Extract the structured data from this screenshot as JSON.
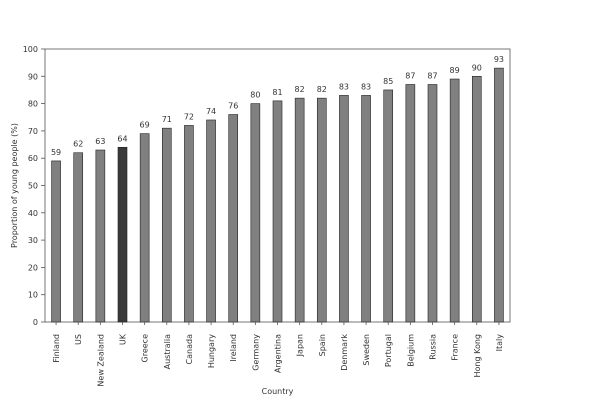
{
  "chart_data": {
    "type": "bar",
    "xlabel": "Country",
    "ylabel": "Proportion of young people (%)",
    "ylim": [
      0,
      100
    ],
    "yticks": [
      0,
      10,
      20,
      30,
      40,
      50,
      60,
      70,
      80,
      90,
      100
    ],
    "grid": false,
    "categories": [
      "Finland",
      "US",
      "New Zealand",
      "UK",
      "Greece",
      "Australia",
      "Canada",
      "Hungary",
      "Ireland",
      "Germany",
      "Argentina",
      "Japan",
      "Spain",
      "Denmark",
      "Sweden",
      "Portugal",
      "Belgium",
      "Russia",
      "France",
      "Hong Kong",
      "Italy"
    ],
    "values": [
      59,
      62,
      63,
      64,
      69,
      71,
      72,
      74,
      76,
      80,
      81,
      82,
      82,
      83,
      83,
      85,
      87,
      87,
      89,
      90,
      93
    ],
    "highlight_category": "UK",
    "colors": {
      "bar": "#808080",
      "highlight": "#3a3a3a",
      "edge": "#222222",
      "axis": "#555555"
    }
  }
}
